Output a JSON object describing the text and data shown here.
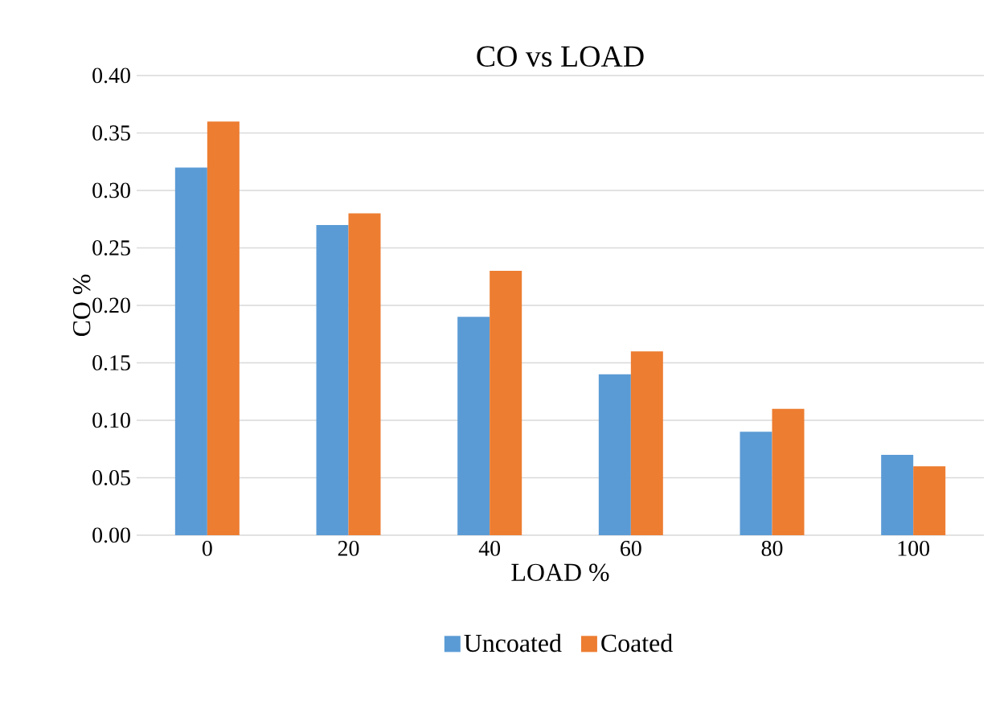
{
  "chart_data": {
    "type": "bar",
    "title": "CO vs LOAD",
    "xlabel": "LOAD %",
    "ylabel": "CO %",
    "categories": [
      "0",
      "20",
      "40",
      "60",
      "80",
      "100"
    ],
    "series": [
      {
        "name": "Uncoated",
        "color": "#5b9bd5",
        "values": [
          0.32,
          0.27,
          0.19,
          0.14,
          0.09,
          0.07
        ]
      },
      {
        "name": "Coated",
        "color": "#ed7d31",
        "values": [
          0.36,
          0.28,
          0.23,
          0.16,
          0.11,
          0.06
        ]
      }
    ],
    "ylim": [
      0,
      0.4
    ],
    "yticks": [
      {
        "value": 0,
        "label": "0.00"
      },
      {
        "value": 0.05,
        "label": "0.05"
      },
      {
        "value": 0.1,
        "label": "0.10"
      },
      {
        "value": 0.15,
        "label": "0.15"
      },
      {
        "value": 0.2,
        "label": "0.20"
      },
      {
        "value": 0.25,
        "label": "0.25"
      },
      {
        "value": 0.3,
        "label": "0.30"
      },
      {
        "value": 0.35,
        "label": "0.35"
      },
      {
        "value": 0.4,
        "label": "0.40"
      }
    ],
    "grid": "y",
    "legend": "bottom"
  }
}
